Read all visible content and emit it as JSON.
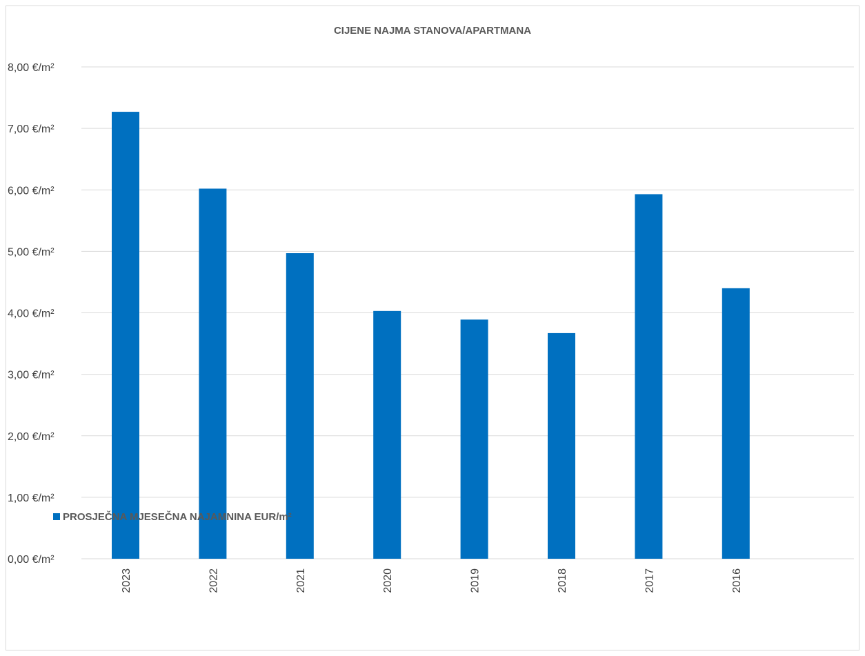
{
  "chart_data": {
    "type": "bar",
    "title": "CIJENE NAJMA STANOVA/APARTMANA",
    "categories": [
      "2023",
      "2022",
      "2021",
      "2020",
      "2019",
      "2018",
      "2017",
      "2016"
    ],
    "series": [
      {
        "name": "PROSJEČNA MJESEČNA NAJAMNINA EUR/m²",
        "values": [
          7.27,
          6.02,
          4.97,
          4.03,
          3.89,
          3.67,
          5.93,
          4.4
        ],
        "color": "#0070c0"
      }
    ],
    "ylim": [
      0,
      8
    ],
    "yticks": [
      "0,00 €/m²",
      "1,00 €/m²",
      "2,00 €/m²",
      "3,00 €/m²",
      "4,00 €/m²",
      "5,00 €/m²",
      "6,00 €/m²",
      "7,00 €/m²",
      "8,00 €/m²"
    ],
    "grid": true,
    "legend_position": "bottom-left",
    "gridline_color": "#d9d9d9",
    "legend_marker": "square"
  }
}
